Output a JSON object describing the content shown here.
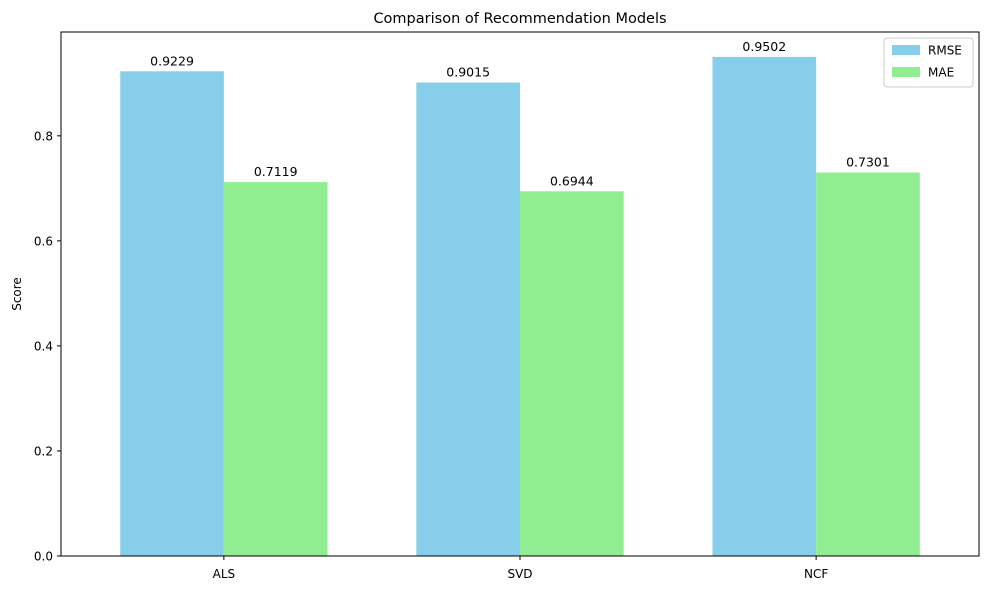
{
  "chart_data": {
    "type": "bar",
    "title": "Comparison of Recommendation Models",
    "xlabel": "",
    "ylabel": "Score",
    "categories": [
      "ALS",
      "SVD",
      "NCF"
    ],
    "series": [
      {
        "name": "RMSE",
        "values": [
          0.9229,
          0.9015,
          0.9502
        ],
        "color": "#87ceeb"
      },
      {
        "name": "MAE",
        "values": [
          0.7119,
          0.6944,
          0.7301
        ],
        "color": "#90ee90"
      }
    ],
    "data_labels": [
      [
        "0.9229",
        "0.9015",
        "0.9502"
      ],
      [
        "0.7119",
        "0.6944",
        "0.7301"
      ]
    ],
    "ylim": [
      0,
      0.9977
    ],
    "yticks": [
      0.0,
      0.2,
      0.4,
      0.6,
      0.8
    ],
    "ytick_labels": [
      "0.0",
      "0.2",
      "0.4",
      "0.6",
      "0.8"
    ],
    "grid": false,
    "legend_position": "top-right"
  }
}
